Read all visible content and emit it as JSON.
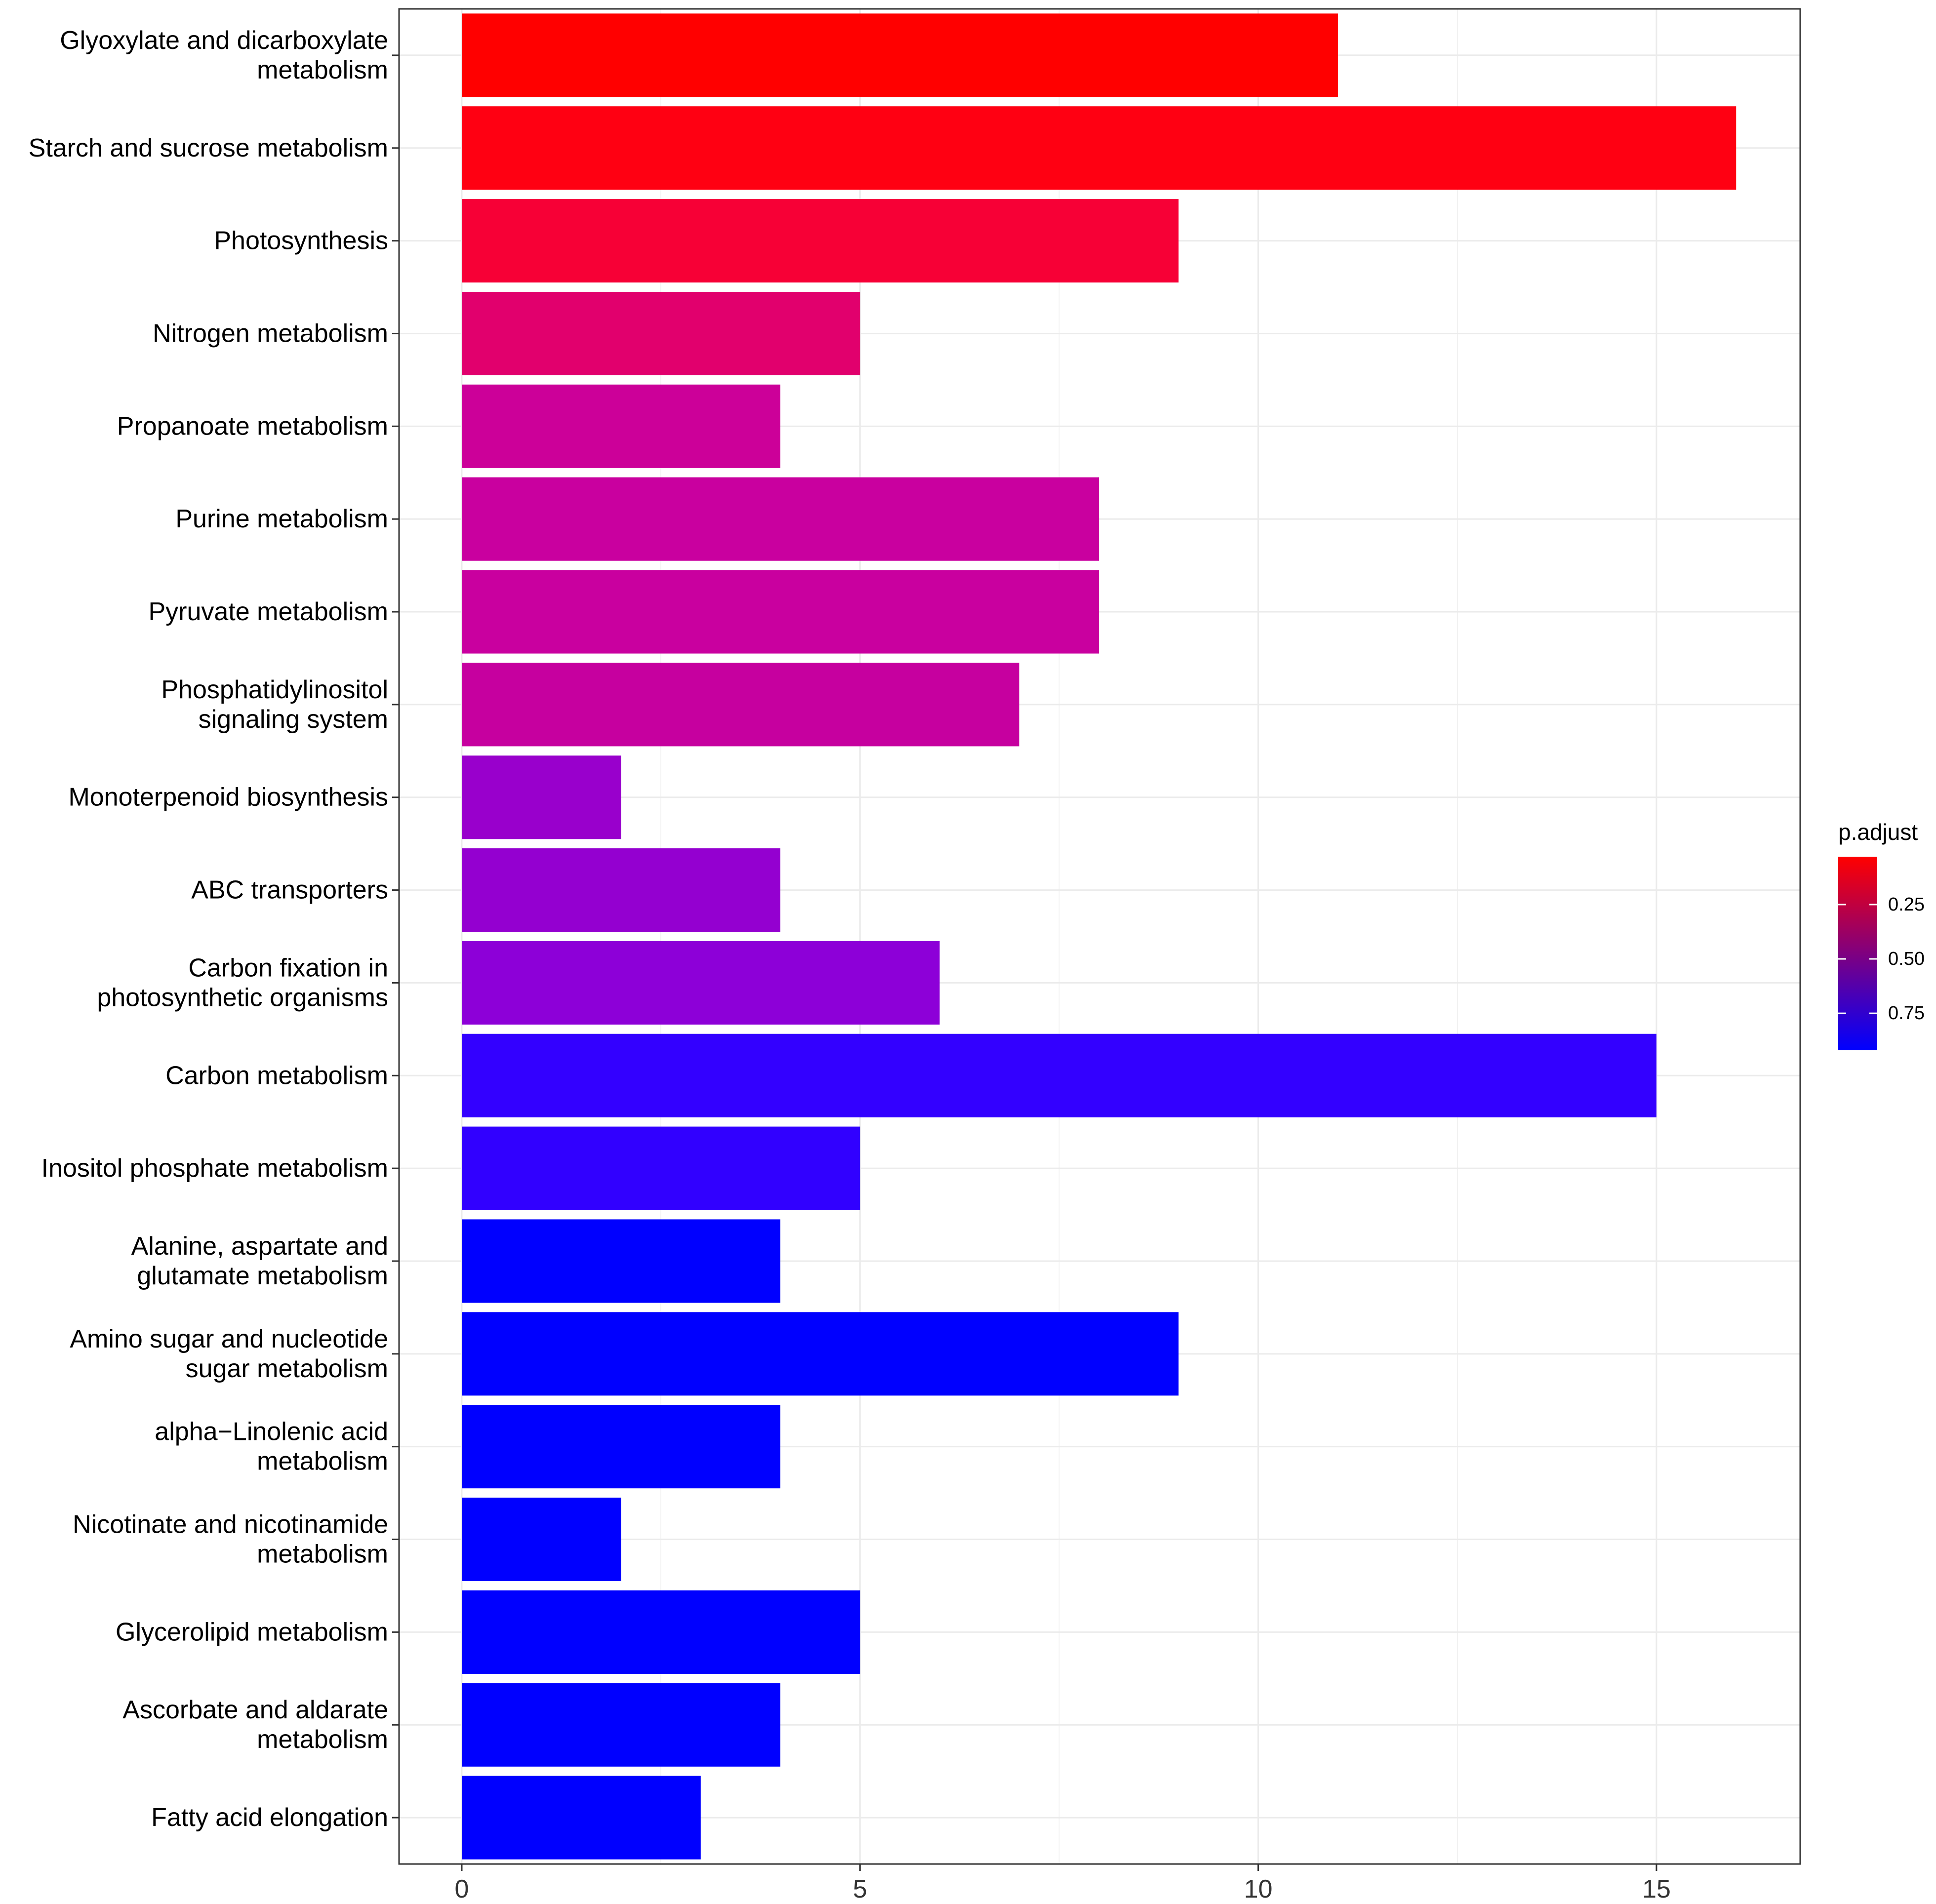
{
  "chart_data": {
    "type": "bar",
    "orientation": "horizontal",
    "title": "",
    "xlabel": "",
    "ylabel": "",
    "xlim": [
      0,
      16.6
    ],
    "grid": true,
    "legend_position": "right",
    "x_ticks": [
      {
        "value": 0,
        "label": "0"
      },
      {
        "value": 5,
        "label": "5"
      },
      {
        "value": 10,
        "label": "10"
      },
      {
        "value": 15,
        "label": "15"
      }
    ],
    "categories": [
      [
        "Glyoxylate and dicarboxylate",
        "metabolism"
      ],
      [
        "Starch and sucrose metabolism"
      ],
      [
        "Photosynthesis"
      ],
      [
        "Nitrogen metabolism"
      ],
      [
        "Propanoate metabolism"
      ],
      [
        "Purine metabolism"
      ],
      [
        "Pyruvate metabolism"
      ],
      [
        "Phosphatidylinositol",
        "signaling system"
      ],
      [
        "Monoterpenoid biosynthesis"
      ],
      [
        "ABC transporters"
      ],
      [
        "Carbon fixation in",
        "photosynthetic organisms"
      ],
      [
        "Carbon metabolism"
      ],
      [
        "Inositol phosphate metabolism"
      ],
      [
        "Alanine, aspartate and",
        "glutamate metabolism"
      ],
      [
        "Amino sugar and nucleotide",
        "sugar metabolism"
      ],
      [
        "alpha−Linolenic acid",
        "metabolism"
      ],
      [
        "Nicotinate and nicotinamide",
        "metabolism"
      ],
      [
        "Glycerolipid metabolism"
      ],
      [
        "Ascorbate and aldarate",
        "metabolism"
      ],
      [
        "Fatty acid elongation"
      ]
    ],
    "values": [
      11,
      16,
      9,
      5,
      4,
      8,
      8,
      7,
      2,
      4,
      6,
      15,
      5,
      4,
      9,
      4,
      2,
      5,
      4,
      3
    ],
    "bar_colors": [
      "#ff0000",
      "#ff0012",
      "#f70036",
      "#e1006d",
      "#cc0099",
      "#c9009f",
      "#c9009f",
      "#c6009f",
      "#9900cc",
      "#9400d0",
      "#8d00d8",
      "#3300ff",
      "#3100ff",
      "#0000ff",
      "#0000ff",
      "#0000ff",
      "#0000ff",
      "#0000ff",
      "#0000ff",
      "#0000ff"
    ],
    "legend": {
      "title": "p.adjust",
      "low_color": "#ff0000",
      "high_color": "#0000ff",
      "range": [
        0.03,
        0.92
      ],
      "ticks": [
        {
          "value": 0.25,
          "label": "0.25"
        },
        {
          "value": 0.5,
          "label": "0.50"
        },
        {
          "value": 0.75,
          "label": "0.75"
        }
      ]
    },
    "colors": {
      "grid": "#ebebeb",
      "panel_border": "#333333",
      "axis_text": "#333333",
      "label_text": "#000000"
    }
  }
}
